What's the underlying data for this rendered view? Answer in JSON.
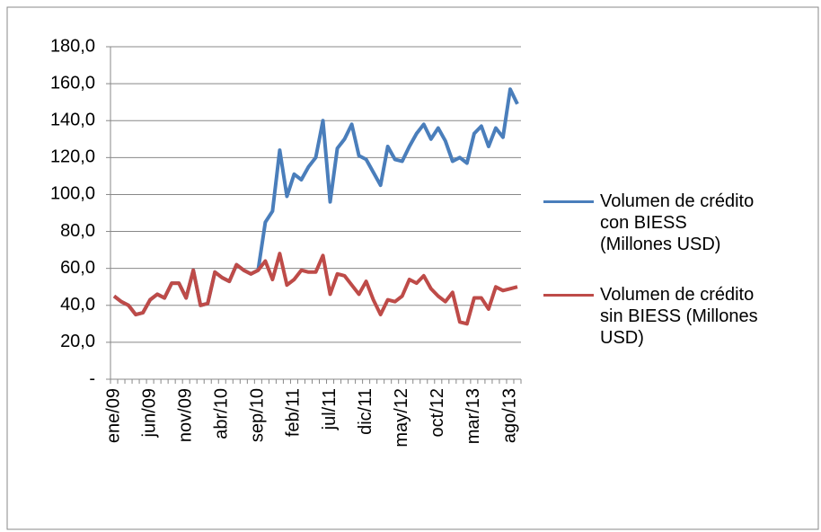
{
  "chart_data": {
    "type": "line",
    "categories": [
      "ene/09",
      null,
      null,
      null,
      null,
      "jun/09",
      null,
      null,
      null,
      null,
      "nov/09",
      null,
      null,
      null,
      null,
      "abr/10",
      null,
      null,
      null,
      null,
      "sep/10",
      null,
      null,
      null,
      null,
      "feb/11",
      null,
      null,
      null,
      null,
      "jul/11",
      null,
      null,
      null,
      null,
      "dic/11",
      null,
      null,
      null,
      null,
      "may/12",
      null,
      null,
      null,
      null,
      "oct/12",
      null,
      null,
      null,
      null,
      "mar/13",
      null,
      null,
      null,
      null,
      "ago/13",
      null
    ],
    "series": [
      {
        "name": "Volumen de crédito con BIESS (Millones USD)",
        "color": "#4a7ebb",
        "values": [
          45,
          42,
          40,
          35,
          36,
          43,
          46,
          44,
          52,
          52,
          44,
          59,
          40,
          41,
          58,
          55,
          53,
          62,
          59,
          57,
          59,
          85,
          91,
          124,
          99,
          111,
          108,
          115,
          120,
          140,
          96,
          125,
          130,
          138,
          121,
          119,
          112,
          105,
          126,
          119,
          118,
          126,
          133,
          138,
          130,
          136,
          129,
          118,
          120,
          117,
          133,
          137,
          126,
          136,
          131,
          157,
          149
        ]
      },
      {
        "name": "Volumen de crédito sin BIESS (Millones USD)",
        "color": "#be4b48",
        "values": [
          45,
          42,
          40,
          35,
          36,
          43,
          46,
          44,
          52,
          52,
          44,
          59,
          40,
          41,
          58,
          55,
          53,
          62,
          59,
          57,
          59,
          64,
          54,
          68,
          51,
          54,
          59,
          58,
          58,
          67,
          46,
          57,
          56,
          51,
          46,
          53,
          43,
          35,
          43,
          42,
          45,
          54,
          52,
          56,
          49,
          45,
          42,
          47,
          31,
          30,
          44,
          44,
          38,
          50,
          48,
          49,
          50
        ]
      }
    ],
    "ylim": [
      0,
      180
    ],
    "yticks": [
      {
        "value": 0,
        "label": "-"
      },
      {
        "value": 20,
        "label": "20,0"
      },
      {
        "value": 40,
        "label": "40,0"
      },
      {
        "value": 60,
        "label": "60,0"
      },
      {
        "value": 80,
        "label": "80,0"
      },
      {
        "value": 100,
        "label": "100,0"
      },
      {
        "value": 120,
        "label": "120,0"
      },
      {
        "value": 140,
        "label": "140,0"
      },
      {
        "value": 160,
        "label": "160,0"
      },
      {
        "value": 180,
        "label": "180,0"
      }
    ],
    "grid": true
  }
}
